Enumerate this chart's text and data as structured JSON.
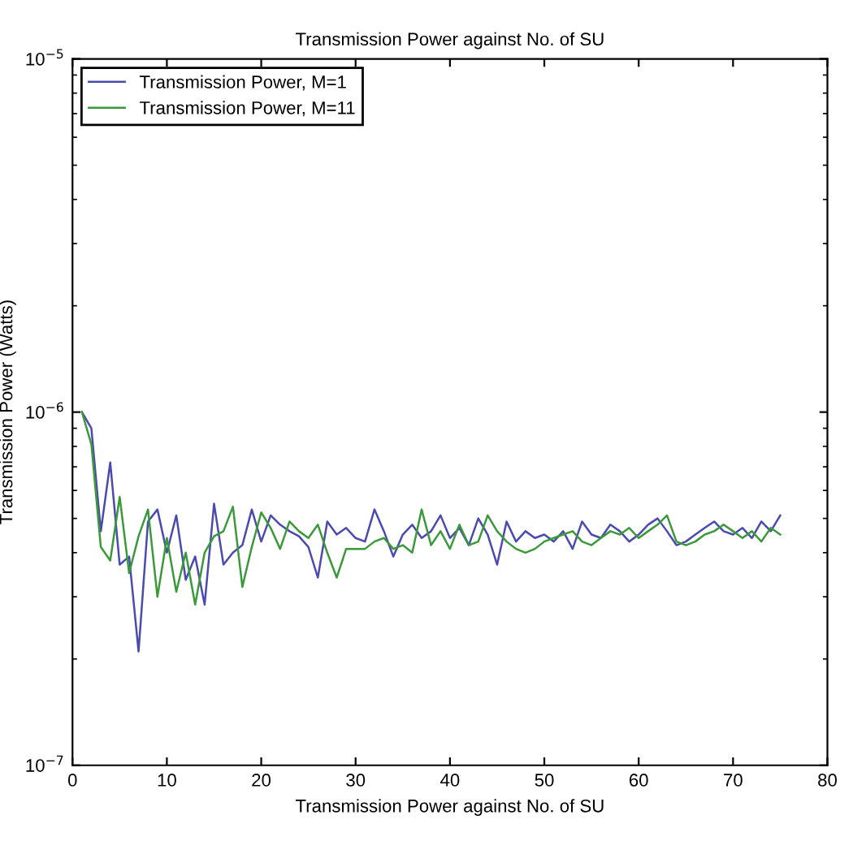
{
  "chart_data": {
    "type": "line",
    "title": "Transmission Power against No. of SU",
    "xlabel": "Transmission Power against No. of SU",
    "ylabel": "Transmission Power (Watts)",
    "x": [
      1,
      2,
      3,
      4,
      5,
      6,
      7,
      8,
      9,
      10,
      11,
      12,
      13,
      14,
      15,
      16,
      17,
      18,
      19,
      20,
      21,
      22,
      23,
      24,
      25,
      26,
      27,
      28,
      29,
      30,
      31,
      32,
      33,
      34,
      35,
      36,
      37,
      38,
      39,
      40,
      41,
      42,
      43,
      44,
      45,
      46,
      47,
      48,
      49,
      50,
      51,
      52,
      53,
      54,
      55,
      56,
      57,
      58,
      59,
      60,
      61,
      62,
      63,
      64,
      65,
      66,
      67,
      68,
      69,
      70,
      71,
      72,
      73,
      74,
      75
    ],
    "series": [
      {
        "name": "Transmission Power, M=1",
        "color": "#4a4ab0",
        "values": [
          1e-06,
          9e-07,
          4.6e-07,
          7.2e-07,
          3.7e-07,
          3.9e-07,
          2.1e-07,
          4.9e-07,
          5.3e-07,
          4e-07,
          5.1e-07,
          3.35e-07,
          3.9e-07,
          2.85e-07,
          5.5e-07,
          3.7e-07,
          4e-07,
          4.2e-07,
          5.3e-07,
          4.3e-07,
          5.1e-07,
          4.8e-07,
          4.6e-07,
          4.45e-07,
          4.15e-07,
          3.4e-07,
          4.9e-07,
          4.5e-07,
          4.7e-07,
          4.4e-07,
          4.3e-07,
          5.3e-07,
          4.6e-07,
          3.9e-07,
          4.5e-07,
          4.8e-07,
          4.4e-07,
          4.6e-07,
          5.1e-07,
          4.4e-07,
          4.7e-07,
          4.2e-07,
          5e-07,
          4.5e-07,
          3.7e-07,
          4.9e-07,
          4.3e-07,
          4.6e-07,
          4.4e-07,
          4.5e-07,
          4.3e-07,
          4.6e-07,
          4.1e-07,
          4.9e-07,
          4.5e-07,
          4.4e-07,
          4.8e-07,
          4.6e-07,
          4.3e-07,
          4.5e-07,
          4.8e-07,
          5e-07,
          4.6e-07,
          4.2e-07,
          4.3e-07,
          4.5e-07,
          4.7e-07,
          4.9e-07,
          4.6e-07,
          4.5e-07,
          4.7e-07,
          4.4e-07,
          4.9e-07,
          4.6e-07,
          5.1e-07
        ]
      },
      {
        "name": "Transmission Power, M=11",
        "color": "#3a9a3a",
        "values": [
          1e-06,
          8.1e-07,
          4.15e-07,
          3.8e-07,
          5.75e-07,
          3.5e-07,
          4.45e-07,
          5.3e-07,
          3e-07,
          4.4e-07,
          3.1e-07,
          4e-07,
          2.85e-07,
          4e-07,
          4.45e-07,
          4.6e-07,
          5.4e-07,
          3.2e-07,
          4.15e-07,
          5.2e-07,
          4.7e-07,
          4.1e-07,
          4.9e-07,
          4.6e-07,
          4.4e-07,
          4.8e-07,
          4e-07,
          3.4e-07,
          4.1e-07,
          4.1e-07,
          4.1e-07,
          4.3e-07,
          4.4e-07,
          4.1e-07,
          4.2e-07,
          4e-07,
          5.3e-07,
          4.2e-07,
          4.6e-07,
          4.1e-07,
          4.8e-07,
          4.2e-07,
          4.3e-07,
          5.1e-07,
          4.6e-07,
          4.3e-07,
          4.1e-07,
          4e-07,
          4.1e-07,
          4.3e-07,
          4.4e-07,
          4.5e-07,
          4.6e-07,
          4.3e-07,
          4.2e-07,
          4.4e-07,
          4.6e-07,
          4.5e-07,
          4.7e-07,
          4.4e-07,
          4.6e-07,
          4.8e-07,
          5.1e-07,
          4.3e-07,
          4.2e-07,
          4.3e-07,
          4.5e-07,
          4.6e-07,
          4.8e-07,
          4.6e-07,
          4.4e-07,
          4.6e-07,
          4.3e-07,
          4.7e-07,
          4.5e-07
        ]
      }
    ],
    "log": "y",
    "xlim": [
      0,
      80
    ],
    "ylim": [
      1e-07,
      1e-05
    ],
    "xticks": [
      0,
      10,
      20,
      30,
      40,
      50,
      60,
      70,
      80
    ],
    "yticks": [
      {
        "value": 1e-07,
        "label": "10$^{−7}$"
      },
      {
        "value": 1e-06,
        "label": "10$^{−6}$"
      },
      {
        "value": 1e-05,
        "label": "10$^{−5}$"
      }
    ],
    "grid": false,
    "legend": "top left",
    "line_style": "solid",
    "marker": "none"
  }
}
